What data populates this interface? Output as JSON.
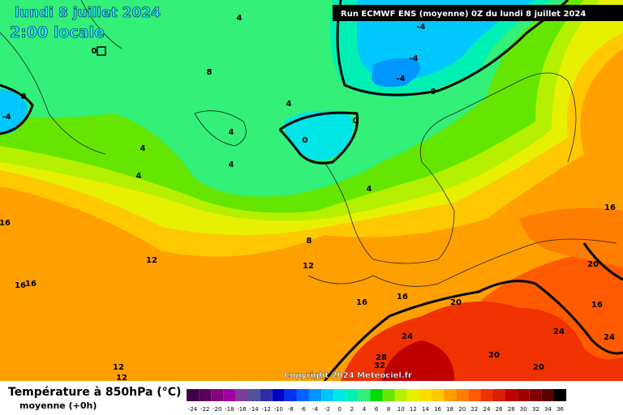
{
  "header": {
    "title": "lundi 8 juillet 2024",
    "subtitle": "2:00 locale",
    "run": "Run ECMWF ENS (moyenne) 0Z du lundi 8 juillet 2024"
  },
  "map": {
    "copyright": "Copyright 2024 Meteociel.fr",
    "contour_labels": [
      -4,
      -4,
      -4,
      0,
      0,
      0,
      -4,
      4,
      8,
      4,
      0,
      0,
      4,
      4,
      4,
      4,
      4,
      16,
      8,
      12,
      12,
      16,
      16,
      16,
      16,
      20,
      16,
      20,
      16,
      24,
      24,
      24,
      20,
      20,
      28,
      32,
      12,
      12
    ]
  },
  "legend": {
    "title": "Température à 850hPa (°C)",
    "subtitle": "moyenne   (+0h)",
    "ticks": [
      -24,
      -22,
      -20,
      -18,
      -16,
      -14,
      -12,
      -10,
      -8,
      -6,
      -4,
      -2,
      0,
      2,
      4,
      6,
      8,
      10,
      12,
      14,
      16,
      18,
      20,
      22,
      24,
      26,
      28,
      30,
      32,
      34,
      36
    ],
    "colors": [
      "#3c0046",
      "#5a005a",
      "#820082",
      "#a000a0",
      "#7d3c9b",
      "#50509b",
      "#2d2da5",
      "#0000c8",
      "#0032f0",
      "#0064ff",
      "#0096ff",
      "#00c8ff",
      "#00e6e6",
      "#00f0b4",
      "#32f078",
      "#00dc00",
      "#64e600",
      "#b4f000",
      "#e6f000",
      "#ffdc00",
      "#ffc800",
      "#ffa000",
      "#ff7d00",
      "#ff5a00",
      "#f03200",
      "#dc1e00",
      "#be0000",
      "#a00000",
      "#820000",
      "#5a0000",
      "#000000"
    ]
  }
}
